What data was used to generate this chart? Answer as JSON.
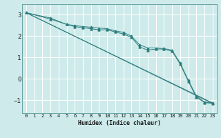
{
  "title": "",
  "xlabel": "Humidex (Indice chaleur)",
  "ylabel": "",
  "bg_color": "#ceeaea",
  "grid_color": "#ffffff",
  "line_color": "#2e7d7d",
  "xlim": [
    -0.5,
    23.5
  ],
  "ylim": [
    -1.6,
    3.5
  ],
  "yticks": [
    -1,
    0,
    1,
    2,
    3
  ],
  "xticks": [
    0,
    1,
    2,
    3,
    4,
    5,
    6,
    7,
    8,
    9,
    10,
    11,
    12,
    13,
    14,
    15,
    16,
    17,
    18,
    19,
    20,
    21,
    22,
    23
  ],
  "series": [
    {
      "x": [
        0,
        3,
        5,
        6,
        7,
        8,
        9,
        10,
        11,
        12,
        13,
        14,
        15,
        16,
        17,
        18,
        19,
        20,
        21,
        22,
        23
      ],
      "y": [
        3.1,
        2.85,
        2.55,
        2.45,
        2.4,
        2.35,
        2.3,
        2.3,
        2.2,
        2.1,
        1.95,
        1.5,
        1.35,
        1.4,
        1.4,
        1.3,
        0.7,
        -0.1,
        -0.85,
        -1.1,
        -1.15
      ],
      "marker": true
    },
    {
      "x": [
        0,
        3,
        5,
        6,
        7,
        8,
        9,
        10,
        11,
        12,
        13,
        14,
        15,
        16,
        17,
        18,
        19,
        20,
        21,
        22,
        23
      ],
      "y": [
        3.1,
        2.8,
        2.55,
        2.5,
        2.45,
        2.42,
        2.38,
        2.35,
        2.25,
        2.18,
        2.0,
        1.6,
        1.45,
        1.45,
        1.42,
        1.35,
        0.75,
        -0.05,
        -0.8,
        -1.08,
        -1.12
      ],
      "marker": true
    },
    {
      "x": [
        0,
        3,
        23
      ],
      "y": [
        3.1,
        2.55,
        -1.15
      ],
      "marker": false
    },
    {
      "x": [
        0,
        3,
        23
      ],
      "y": [
        3.1,
        2.55,
        -1.12
      ],
      "marker": false
    }
  ]
}
